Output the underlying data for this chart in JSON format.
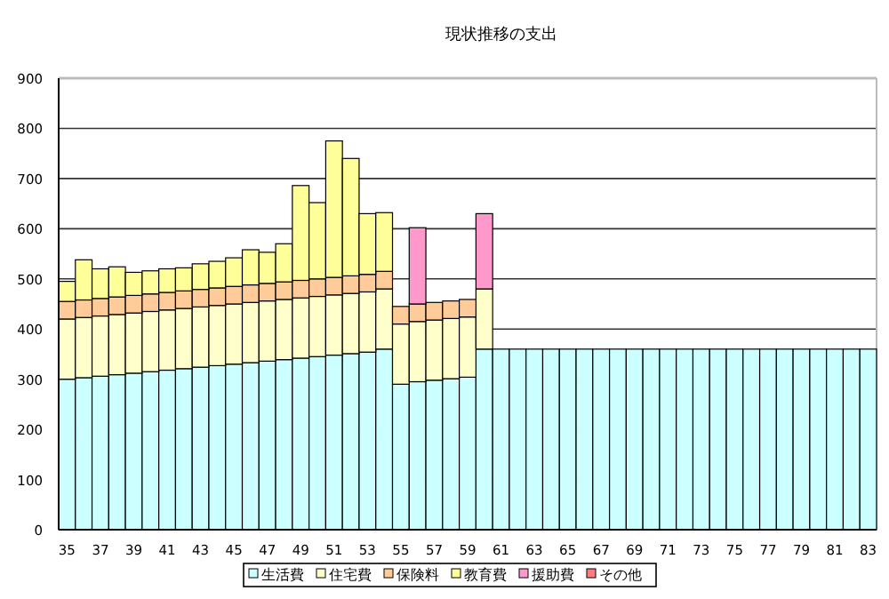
{
  "chart_data": {
    "type": "bar",
    "title": "現状推移の支出",
    "stacked": true,
    "grid": "y",
    "legend": "bottom",
    "categories": [
      "35",
      null,
      "37",
      null,
      "39",
      null,
      "41",
      null,
      "43",
      null,
      "45",
      null,
      "47",
      null,
      "49",
      null,
      "51",
      null,
      "53",
      null,
      "55",
      null,
      "57",
      null,
      "59",
      null,
      "61",
      null,
      "63",
      null,
      "65",
      null,
      "67",
      null,
      "69",
      null,
      "71",
      null,
      "73",
      null,
      "75",
      null,
      "77",
      null,
      "79",
      null,
      "81",
      null,
      "83"
    ],
    "ylim": [
      0,
      900
    ],
    "yticks": [
      0,
      100,
      200,
      300,
      400,
      500,
      600,
      700,
      800,
      900
    ],
    "series": [
      {
        "name": "生活費",
        "color": "#ccffff",
        "values": [
          300,
          303,
          306,
          309,
          312,
          315,
          318,
          321,
          324,
          327,
          330,
          333,
          336,
          339,
          342,
          345,
          348,
          351,
          354,
          360,
          290,
          295,
          298,
          301,
          304,
          360,
          360,
          360,
          360,
          360,
          360,
          360,
          360,
          360,
          360,
          360,
          360,
          360,
          360,
          360,
          360,
          360,
          360,
          360,
          360,
          360,
          360,
          360,
          360
        ]
      },
      {
        "name": "住宅費",
        "color": "#ffffcc",
        "values": [
          120,
          120,
          120,
          120,
          120,
          120,
          120,
          120,
          120,
          120,
          120,
          120,
          120,
          120,
          120,
          120,
          120,
          120,
          120,
          120,
          120,
          120,
          120,
          120,
          120,
          120,
          null,
          null,
          null,
          null,
          null,
          null,
          null,
          null,
          null,
          null,
          null,
          null,
          null,
          null,
          null,
          null,
          null,
          null,
          null,
          null,
          null,
          null,
          null
        ]
      },
      {
        "name": "保険料",
        "color": "#ffcc99",
        "values": [
          35,
          35,
          35,
          35,
          35,
          35,
          35,
          35,
          35,
          35,
          35,
          35,
          35,
          35,
          35,
          35,
          35,
          35,
          35,
          35,
          35,
          35,
          35,
          35,
          35,
          null,
          null,
          null,
          null,
          null,
          null,
          null,
          null,
          null,
          null,
          null,
          null,
          null,
          null,
          null,
          null,
          null,
          null,
          null,
          null,
          null,
          null,
          null,
          null
        ]
      },
      {
        "name": "教育費",
        "color": "#ffff99",
        "values": [
          40,
          80,
          59,
          60,
          46,
          46,
          47,
          46,
          51,
          53,
          57,
          70,
          62,
          76,
          189,
          152,
          272,
          234,
          121,
          117,
          null,
          null,
          null,
          null,
          null,
          null,
          null,
          null,
          null,
          null,
          null,
          null,
          null,
          null,
          null,
          null,
          null,
          null,
          null,
          null,
          null,
          null,
          null,
          null,
          null,
          null,
          null,
          null,
          null
        ]
      },
      {
        "name": "援助費",
        "color": "#ff99cc",
        "values": [
          null,
          null,
          null,
          null,
          null,
          null,
          null,
          null,
          null,
          null,
          null,
          null,
          null,
          null,
          null,
          null,
          null,
          null,
          null,
          null,
          null,
          152,
          null,
          null,
          null,
          150,
          null,
          null,
          null,
          null,
          null,
          null,
          null,
          null,
          null,
          null,
          null,
          null,
          null,
          null,
          null,
          null,
          null,
          null,
          null,
          null,
          null,
          null,
          null
        ]
      },
      {
        "name": "その他",
        "color": "#ff7c80",
        "values": [
          null,
          null,
          null,
          null,
          null,
          null,
          null,
          null,
          null,
          null,
          null,
          null,
          null,
          null,
          null,
          null,
          null,
          null,
          null,
          null,
          null,
          null,
          null,
          null,
          null,
          null,
          null,
          null,
          null,
          null,
          null,
          null,
          null,
          null,
          null,
          null,
          null,
          null,
          null,
          null,
          null,
          null,
          null,
          null,
          null,
          null,
          null,
          null,
          null
        ]
      }
    ]
  }
}
